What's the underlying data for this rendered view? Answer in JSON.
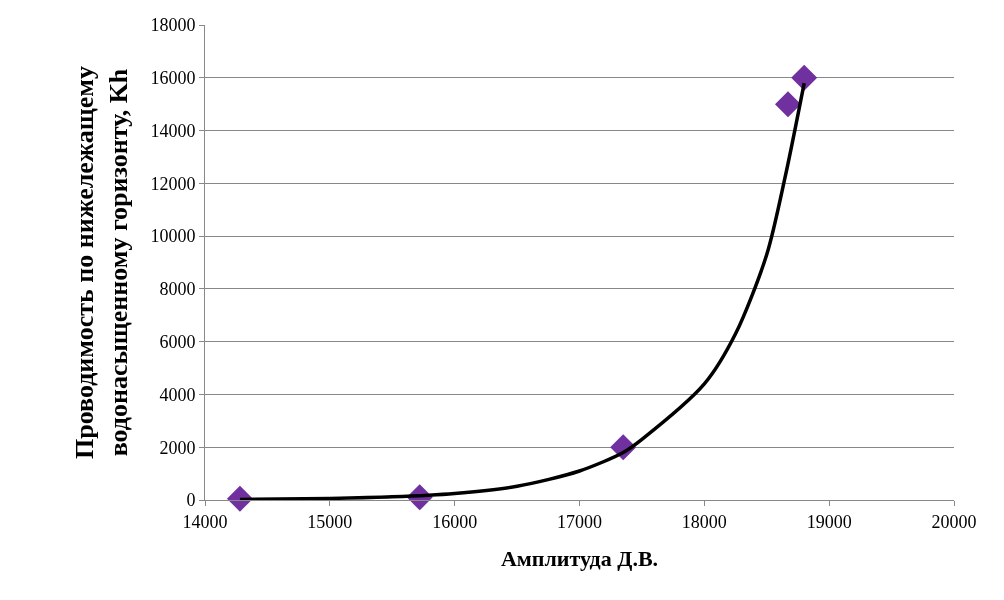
{
  "chart_data": {
    "type": "scatter",
    "xlabel": "Амплитуда Д.В.",
    "ylabel": "Проводимость по нижележащему\nводонасыщенному горизонту, Kh",
    "xlim": [
      14000,
      20000
    ],
    "xticks": [
      14000,
      15000,
      16000,
      17000,
      18000,
      19000,
      20000
    ],
    "ylim": [
      0,
      18000
    ],
    "yticks": [
      0,
      2000,
      4000,
      6000,
      8000,
      10000,
      12000,
      14000,
      16000,
      18000
    ],
    "grid": "y",
    "series": [
      {
        "type": "scatter",
        "color": "#7030a0",
        "marker": "diamond",
        "x": [
          14280,
          15720,
          17350,
          18670,
          18800
        ],
        "values": [
          50,
          100,
          2000,
          15000,
          16000
        ]
      },
      {
        "type": "line",
        "color": "#000000",
        "marker": "none",
        "line_style": "solid",
        "x": [
          14280,
          15000,
          15500,
          16000,
          16500,
          17000,
          17350,
          17500,
          18000,
          18250,
          18500,
          18650,
          18800
        ],
        "values": [
          20,
          60,
          120,
          250,
          520,
          1100,
          1800,
          2300,
          4400,
          6300,
          9300,
          12300,
          15800
        ]
      }
    ]
  }
}
